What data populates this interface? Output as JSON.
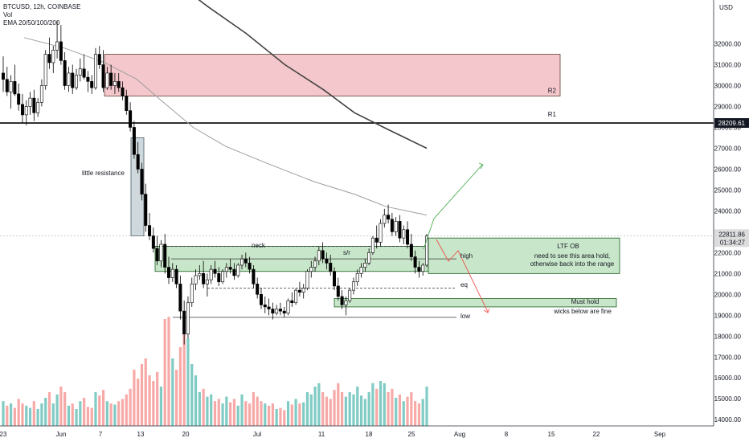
{
  "legend": {
    "symbol": "BTCUSD, 12h, COINBASE",
    "volume": "Vol",
    "ema": "EMA 20/50/100/200"
  },
  "colors": {
    "up": "#26a69a",
    "down": "#ef5350",
    "vol_up": "#80cbc4",
    "vol_down": "#f7a9a7",
    "zone_green_fill": "#c8e6c9",
    "zone_red_fill": "#f4c7cc",
    "arrow_green": "#4caf50",
    "arrow_red": "#ef5350"
  },
  "chart_data": {
    "type": "candlestick",
    "axis": {
      "unit": "USD",
      "ylim": [
        13700,
        34100
      ],
      "y_ticks": [
        "32000.00",
        "31000.00",
        "30000.00",
        "29000.00",
        "28000.00",
        "27000.00",
        "26000.00",
        "25000.00",
        "24000.00",
        "23000.00",
        "22000.00",
        "21000.00",
        "20000.00",
        "19000.00",
        "18000.00",
        "17000.00",
        "16000.00",
        "15000.00",
        "14000.00"
      ],
      "x_ticks": [
        "23",
        "Jun",
        "7",
        "13",
        "20",
        "Jul",
        "11",
        "18",
        "25",
        "Aug",
        "8",
        "15",
        "22",
        "Sep"
      ],
      "price_badge": "28209.61",
      "current_price": "22811.86",
      "countdown": "01:34:27"
    },
    "candles_ohlc": [
      [
        30600,
        31400,
        29700,
        30300
      ],
      [
        30300,
        30900,
        29500,
        29700
      ],
      [
        29700,
        30500,
        28900,
        30200
      ],
      [
        30200,
        31000,
        29500,
        29600
      ],
      [
        29600,
        30100,
        28800,
        29100
      ],
      [
        29100,
        29600,
        28200,
        28600
      ],
      [
        28600,
        29300,
        28100,
        29000
      ],
      [
        29000,
        29700,
        28600,
        29400
      ],
      [
        29400,
        29800,
        28300,
        28700
      ],
      [
        28700,
        29400,
        28500,
        29200
      ],
      [
        29200,
        30300,
        29000,
        30000
      ],
      [
        30000,
        31700,
        29800,
        31500
      ],
      [
        31500,
        32300,
        30800,
        31100
      ],
      [
        31100,
        31900,
        30600,
        31700
      ],
      [
        31700,
        33100,
        31300,
        32100
      ],
      [
        32100,
        32900,
        31000,
        31200
      ],
      [
        31200,
        31600,
        29800,
        30000
      ],
      [
        30000,
        30900,
        29700,
        30600
      ],
      [
        30600,
        31000,
        29600,
        29900
      ],
      [
        29900,
        30800,
        29800,
        30500
      ],
      [
        30500,
        31300,
        30200,
        30800
      ],
      [
        30800,
        31500,
        30300,
        30400
      ],
      [
        30400,
        30700,
        29700,
        30200
      ],
      [
        30200,
        30500,
        29600,
        29900
      ],
      [
        29900,
        31800,
        29800,
        31500
      ],
      [
        31500,
        31900,
        30800,
        31000
      ],
      [
        31000,
        31700,
        29700,
        29900
      ],
      [
        29900,
        30900,
        29800,
        30600
      ],
      [
        30600,
        31000,
        29800,
        30000
      ],
      [
        30000,
        30600,
        29600,
        30200
      ],
      [
        30200,
        30600,
        29700,
        29900
      ],
      [
        29900,
        30200,
        29300,
        29500
      ],
      [
        29500,
        29800,
        28600,
        28800
      ],
      [
        28800,
        29200,
        27800,
        28000
      ],
      [
        28000,
        28300,
        26500,
        26700
      ],
      [
        26700,
        27300,
        25800,
        26000
      ],
      [
        26000,
        26300,
        24500,
        24800
      ],
      [
        24800,
        25300,
        23000,
        23300
      ],
      [
        23300,
        23900,
        22600,
        22800
      ],
      [
        22800,
        23200,
        22000,
        22200
      ],
      [
        22200,
        22800,
        21400,
        21600
      ],
      [
        21600,
        22600,
        21300,
        22400
      ],
      [
        22400,
        22900,
        21000,
        21300
      ],
      [
        21300,
        21800,
        20500,
        20800
      ],
      [
        20800,
        21500,
        20600,
        21200
      ],
      [
        21200,
        21400,
        20300,
        20500
      ],
      [
        20500,
        20900,
        18800,
        19200
      ],
      [
        19200,
        19700,
        17600,
        18100
      ],
      [
        18100,
        19900,
        17900,
        19600
      ],
      [
        19600,
        20800,
        19400,
        20500
      ],
      [
        20500,
        21200,
        20200,
        20900
      ],
      [
        20900,
        21400,
        20700,
        21000
      ],
      [
        21000,
        21600,
        20300,
        20500
      ],
      [
        20500,
        21000,
        19900,
        20700
      ],
      [
        20700,
        21400,
        20500,
        21200
      ],
      [
        21200,
        21600,
        20800,
        21000
      ],
      [
        21000,
        21300,
        20400,
        20600
      ],
      [
        20600,
        21200,
        20500,
        21100
      ],
      [
        21100,
        21500,
        20800,
        21300
      ],
      [
        21300,
        21700,
        21000,
        21200
      ],
      [
        21200,
        21500,
        20700,
        20900
      ],
      [
        20900,
        21500,
        20800,
        21400
      ],
      [
        21400,
        21900,
        21200,
        21700
      ],
      [
        21700,
        22000,
        21300,
        21500
      ],
      [
        21500,
        21800,
        21000,
        21200
      ],
      [
        21200,
        21400,
        20300,
        20500
      ],
      [
        20500,
        20800,
        19800,
        20000
      ],
      [
        20000,
        20300,
        19300,
        19500
      ],
      [
        19500,
        19900,
        19100,
        19400
      ],
      [
        19400,
        19800,
        19000,
        19300
      ],
      [
        19300,
        19600,
        18800,
        19100
      ],
      [
        19100,
        19500,
        19000,
        19300
      ],
      [
        19300,
        19600,
        19000,
        19200
      ],
      [
        19200,
        19400,
        18900,
        19100
      ],
      [
        19100,
        19800,
        19000,
        19700
      ],
      [
        19700,
        20100,
        19400,
        19600
      ],
      [
        19600,
        20300,
        19500,
        20200
      ],
      [
        20200,
        20600,
        19900,
        20100
      ],
      [
        20100,
        20500,
        19800,
        20300
      ],
      [
        20300,
        21200,
        20200,
        21100
      ],
      [
        21100,
        21600,
        20800,
        21300
      ],
      [
        21300,
        21800,
        21100,
        21600
      ],
      [
        21600,
        22300,
        21400,
        22100
      ],
      [
        22100,
        22500,
        21500,
        21700
      ],
      [
        21700,
        22000,
        21200,
        21500
      ],
      [
        21500,
        21900,
        20900,
        21100
      ],
      [
        21100,
        21300,
        20200,
        20400
      ],
      [
        20400,
        20800,
        19700,
        19900
      ],
      [
        19900,
        20200,
        19300,
        19500
      ],
      [
        19500,
        19900,
        19000,
        19700
      ],
      [
        19700,
        20300,
        19600,
        20200
      ],
      [
        20200,
        20800,
        20000,
        20600
      ],
      [
        20600,
        21200,
        20400,
        21000
      ],
      [
        21000,
        21500,
        20800,
        21300
      ],
      [
        21300,
        21700,
        21100,
        21500
      ],
      [
        21500,
        22200,
        21400,
        22000
      ],
      [
        22000,
        22800,
        21900,
        22700
      ],
      [
        22700,
        23300,
        22200,
        22500
      ],
      [
        22500,
        23600,
        22300,
        23400
      ],
      [
        23400,
        24100,
        23200,
        23800
      ],
      [
        23800,
        24300,
        23400,
        23600
      ],
      [
        23600,
        23900,
        22800,
        23000
      ],
      [
        23000,
        23700,
        22800,
        23500
      ],
      [
        23500,
        23800,
        22500,
        22700
      ],
      [
        22700,
        23300,
        22400,
        23100
      ],
      [
        23100,
        23500,
        22200,
        22400
      ],
      [
        22400,
        22900,
        21600,
        21800
      ],
      [
        21800,
        22100,
        21000,
        21300
      ],
      [
        21300,
        21600,
        20800,
        21100
      ],
      [
        21100,
        21500,
        20900,
        21400
      ],
      [
        21400,
        22900,
        21300,
        22800
      ]
    ],
    "volume": [
      [
        0.22,
        1
      ],
      [
        0.18,
        0
      ],
      [
        0.2,
        1
      ],
      [
        0.16,
        0
      ],
      [
        0.24,
        0
      ],
      [
        0.2,
        0
      ],
      [
        0.18,
        1
      ],
      [
        0.16,
        1
      ],
      [
        0.22,
        0
      ],
      [
        0.15,
        1
      ],
      [
        0.2,
        1
      ],
      [
        0.25,
        1
      ],
      [
        0.3,
        0
      ],
      [
        0.2,
        1
      ],
      [
        0.28,
        1
      ],
      [
        0.35,
        0
      ],
      [
        0.3,
        0
      ],
      [
        0.18,
        1
      ],
      [
        0.2,
        0
      ],
      [
        0.15,
        1
      ],
      [
        0.22,
        1
      ],
      [
        0.25,
        0
      ],
      [
        0.17,
        0
      ],
      [
        0.16,
        0
      ],
      [
        0.3,
        1
      ],
      [
        0.27,
        0
      ],
      [
        0.32,
        0
      ],
      [
        0.22,
        1
      ],
      [
        0.2,
        0
      ],
      [
        0.19,
        1
      ],
      [
        0.22,
        0
      ],
      [
        0.24,
        0
      ],
      [
        0.28,
        0
      ],
      [
        0.33,
        0
      ],
      [
        0.5,
        0
      ],
      [
        0.42,
        0
      ],
      [
        0.55,
        0
      ],
      [
        0.6,
        0
      ],
      [
        0.45,
        0
      ],
      [
        0.4,
        0
      ],
      [
        0.48,
        0
      ],
      [
        0.35,
        1
      ],
      [
        0.95,
        0
      ],
      [
        0.97,
        0
      ],
      [
        0.6,
        1
      ],
      [
        0.5,
        0
      ],
      [
        0.7,
        0
      ],
      [
        0.9,
        0
      ],
      [
        0.78,
        1
      ],
      [
        0.55,
        1
      ],
      [
        0.45,
        1
      ],
      [
        0.3,
        1
      ],
      [
        0.33,
        0
      ],
      [
        0.26,
        1
      ],
      [
        0.28,
        1
      ],
      [
        0.22,
        0
      ],
      [
        0.24,
        0
      ],
      [
        0.2,
        1
      ],
      [
        0.26,
        1
      ],
      [
        0.21,
        0
      ],
      [
        0.24,
        0
      ],
      [
        0.18,
        1
      ],
      [
        0.28,
        1
      ],
      [
        0.22,
        0
      ],
      [
        0.2,
        0
      ],
      [
        0.3,
        0
      ],
      [
        0.26,
        0
      ],
      [
        0.22,
        0
      ],
      [
        0.2,
        1
      ],
      [
        0.18,
        0
      ],
      [
        0.2,
        0
      ],
      [
        0.15,
        1
      ],
      [
        0.16,
        0
      ],
      [
        0.14,
        0
      ],
      [
        0.22,
        1
      ],
      [
        0.19,
        0
      ],
      [
        0.24,
        1
      ],
      [
        0.2,
        0
      ],
      [
        0.21,
        1
      ],
      [
        0.3,
        1
      ],
      [
        0.28,
        1
      ],
      [
        0.35,
        1
      ],
      [
        0.38,
        1
      ],
      [
        0.3,
        0
      ],
      [
        0.26,
        0
      ],
      [
        0.24,
        0
      ],
      [
        0.32,
        0
      ],
      [
        0.38,
        0
      ],
      [
        0.3,
        0
      ],
      [
        0.26,
        1
      ],
      [
        0.3,
        1
      ],
      [
        0.28,
        1
      ],
      [
        0.35,
        1
      ],
      [
        0.27,
        1
      ],
      [
        0.24,
        1
      ],
      [
        0.3,
        1
      ],
      [
        0.38,
        1
      ],
      [
        0.33,
        0
      ],
      [
        0.4,
        1
      ],
      [
        0.38,
        1
      ],
      [
        0.3,
        0
      ],
      [
        0.33,
        0
      ],
      [
        0.25,
        1
      ],
      [
        0.28,
        0
      ],
      [
        0.22,
        1
      ],
      [
        0.26,
        0
      ],
      [
        0.3,
        0
      ],
      [
        0.22,
        0
      ],
      [
        0.2,
        0
      ],
      [
        0.24,
        1
      ],
      [
        0.35,
        1
      ]
    ],
    "ema_fast": [
      [
        0,
        32300
      ],
      [
        0.1,
        31800
      ],
      [
        0.2,
        31100
      ],
      [
        0.28,
        30300
      ],
      [
        0.34,
        29300
      ],
      [
        0.42,
        28000
      ],
      [
        0.5,
        27100
      ],
      [
        0.6,
        26300
      ],
      [
        0.72,
        25400
      ],
      [
        0.82,
        24800
      ],
      [
        0.9,
        24200
      ],
      [
        1,
        23800
      ]
    ],
    "ema_slow": [
      [
        0,
        35200
      ],
      [
        0.15,
        33800
      ],
      [
        0.3,
        32500
      ],
      [
        0.45,
        31000
      ],
      [
        0.6,
        29800
      ],
      [
        0.72,
        28700
      ],
      [
        0.85,
        27900
      ],
      [
        1,
        27000
      ]
    ],
    "annotations": {
      "r2": "R2",
      "r1": "R1",
      "little_resistance": "little resistance",
      "neck": "neck",
      "sr": "s/r",
      "high": "high",
      "eq": "eq",
      "low": "low",
      "ltf_ob": "LTF OB",
      "ltf_ob_note_1": "need to see this area hold,",
      "ltf_ob_note_2": "otherwise back into the range",
      "must_hold": "Must hold",
      "must_hold_note": "wicks below are fine"
    },
    "levels": {
      "r1": 28209.61,
      "r2_top": 31500,
      "r2_bottom": 29500,
      "neck": 22200,
      "high": 21700,
      "eq": 20300,
      "low": 18900,
      "range_top": 22300,
      "range_bottom": 21100,
      "ob_top": 22700,
      "ob_bottom": 21000,
      "must_hold_top": 19800,
      "must_hold_bottom": 19400
    }
  }
}
